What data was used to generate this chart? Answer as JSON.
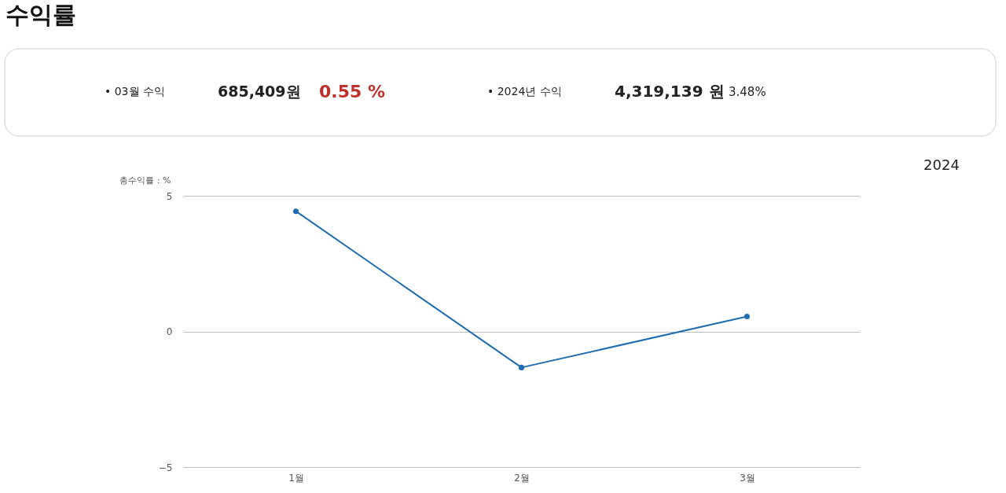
{
  "chart_data": {
    "type": "line",
    "title": "수익률",
    "ylabel": "총수익률 : %",
    "categories": [
      "1월",
      "2월",
      "3월"
    ],
    "series": [
      {
        "color": "#1f6db0",
        "values": [
          4.43,
          -1.33,
          0.55
        ]
      }
    ],
    "ylim": [
      -5,
      5
    ],
    "yticks": [
      -5,
      0,
      5
    ],
    "grid": "y",
    "marker": "circle",
    "line_style": "solid",
    "annotations": [
      "• 03월 수익",
      "685,409원",
      "0.55 %",
      "• 2024년 수익",
      "4,319,139 원",
      "3.48%",
      "2024"
    ]
  }
}
